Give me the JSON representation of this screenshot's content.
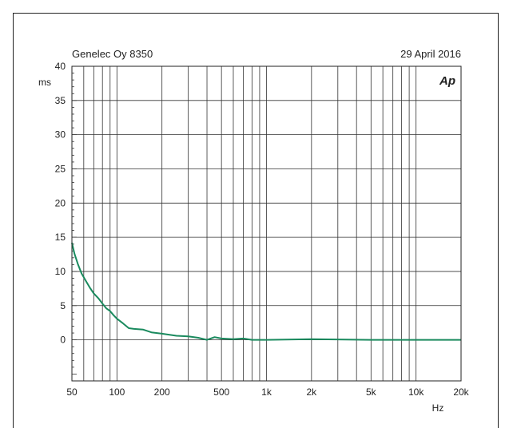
{
  "chart_data": {
    "type": "line",
    "header_left": "Genelec Oy 8350",
    "header_right": "29 April 2016",
    "logo": "Ap",
    "xlabel": "Hz",
    "ylabel": "ms",
    "xscale": "log",
    "xlim": [
      50,
      20000
    ],
    "ylim": [
      -6,
      40
    ],
    "grid": true,
    "x_ticks": [
      {
        "value": 50,
        "label": "50"
      },
      {
        "value": 100,
        "label": "100"
      },
      {
        "value": 200,
        "label": "200"
      },
      {
        "value": 500,
        "label": "500"
      },
      {
        "value": 1000,
        "label": "1k"
      },
      {
        "value": 2000,
        "label": "2k"
      },
      {
        "value": 5000,
        "label": "5k"
      },
      {
        "value": 10000,
        "label": "10k"
      },
      {
        "value": 20000,
        "label": "20k"
      }
    ],
    "y_ticks": [
      0,
      5,
      10,
      15,
      20,
      25,
      30,
      35,
      40
    ],
    "series": [
      {
        "color": "#1a8a5e",
        "x": [
          50,
          52,
          55,
          58,
          62,
          66,
          70,
          75,
          80,
          85,
          90,
          95,
          100,
          110,
          120,
          130,
          150,
          170,
          200,
          250,
          300,
          350,
          400,
          450,
          500,
          600,
          700,
          800,
          1000,
          2000,
          5000,
          10000,
          20000
        ],
        "y": [
          14.2,
          12.6,
          11.0,
          9.7,
          8.6,
          7.6,
          6.8,
          6.1,
          5.3,
          4.6,
          4.2,
          3.6,
          3.1,
          2.4,
          1.7,
          1.6,
          1.5,
          1.1,
          0.9,
          0.6,
          0.5,
          0.3,
          0.0,
          0.4,
          0.2,
          0.1,
          0.2,
          0.0,
          0.0,
          0.1,
          0.0,
          0.0,
          0.0
        ]
      }
    ]
  }
}
